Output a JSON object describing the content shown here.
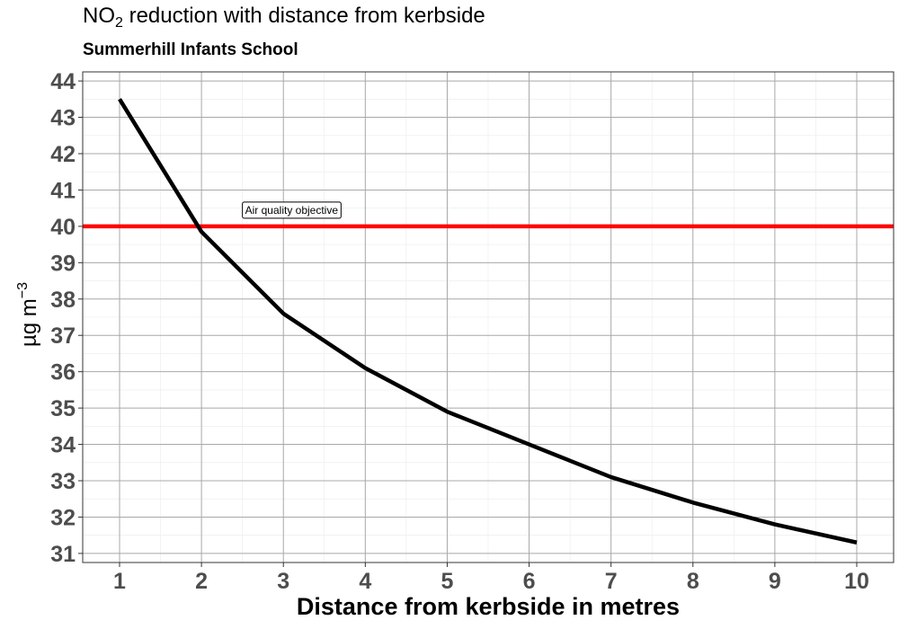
{
  "title": {
    "main": "NO",
    "subscript": "2",
    "rest": " reduction with distance from kerbside"
  },
  "subtitle": "Summerhill Infants School",
  "ylabel": {
    "main": "µg m",
    "superscript": "−3"
  },
  "chart_data": {
    "type": "line",
    "xlabel": "Distance from kerbside in metres",
    "ylabel": "µg m−3",
    "x_ticks": [
      1,
      2,
      3,
      4,
      5,
      6,
      7,
      8,
      9,
      10
    ],
    "y_ticks": [
      31,
      32,
      33,
      34,
      35,
      36,
      37,
      38,
      39,
      40,
      41,
      42,
      43,
      44
    ],
    "xlim": [
      0.55,
      10.45
    ],
    "ylim": [
      30.75,
      44.25
    ],
    "grid": true,
    "series": [
      {
        "color": "#000000",
        "x": [
          1,
          2,
          3,
          4,
          5,
          6,
          7,
          8,
          9,
          10
        ],
        "y": [
          43.5,
          39.85,
          37.6,
          36.1,
          34.9,
          34.0,
          33.1,
          32.4,
          31.8,
          31.3
        ]
      }
    ],
    "reference_line": {
      "y": 40,
      "color": "#ff0000",
      "label": "Air quality objective",
      "label_x": 3.1
    }
  }
}
